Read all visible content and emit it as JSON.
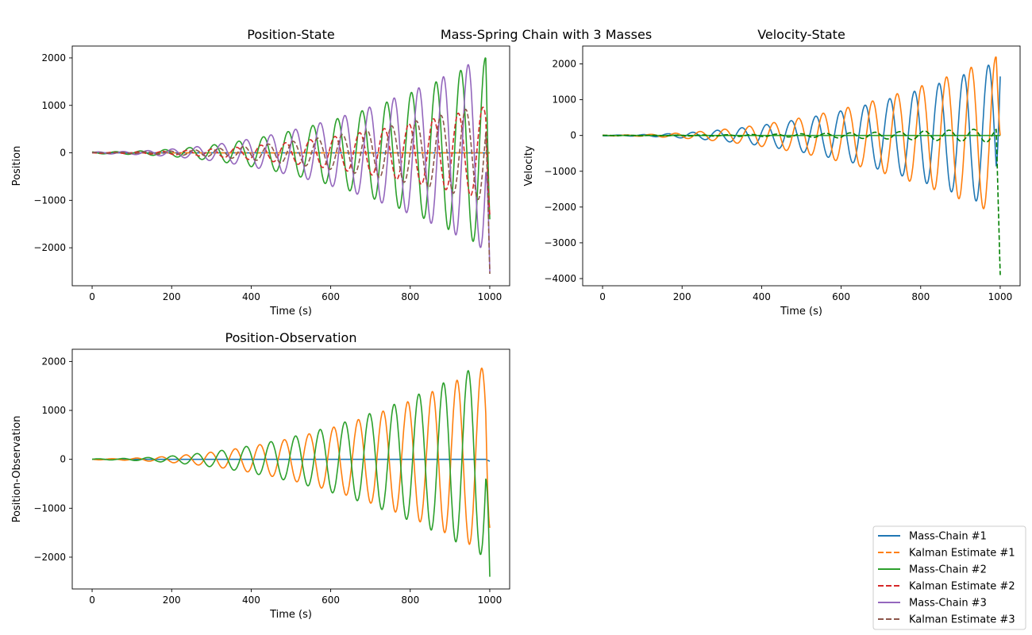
{
  "figure": {
    "suptitle": "Mass-Spring Chain with 3 Masses"
  },
  "legend": {
    "placement": "bottom-right",
    "entries": [
      {
        "label": "Mass-Chain #1",
        "color": "#1f77b4",
        "style": "solid"
      },
      {
        "label": "Kalman Estimate #1",
        "color": "#ff7f0e",
        "style": "dashed"
      },
      {
        "label": "Mass-Chain #2",
        "color": "#2ca02c",
        "style": "solid"
      },
      {
        "label": "Kalman Estimate #2",
        "color": "#d62728",
        "style": "dashed"
      },
      {
        "label": "Mass-Chain #3",
        "color": "#9467bd",
        "style": "solid"
      },
      {
        "label": "Kalman Estimate #3",
        "color": "#8c564b",
        "style": "dashed"
      }
    ]
  },
  "chart_data": [
    {
      "id": "position",
      "type": "line",
      "title": "Position-State",
      "xlabel": "Time (s)",
      "ylabel": "Position",
      "xlim": [
        -50,
        1050
      ],
      "ylim": [
        -2800,
        2250
      ],
      "xticks": [
        0,
        200,
        400,
        600,
        800,
        1000
      ],
      "yticks": [
        -2000,
        -1000,
        0,
        1000,
        2000
      ],
      "period": 62,
      "series": [
        {
          "name": "Mass-Chain #1",
          "color": "#1f77b4",
          "dash": false,
          "amp_start": 0,
          "amp_end": 0,
          "phase": 0,
          "end_value": 0
        },
        {
          "name": "Kalman Estimate #1",
          "color": "#ff7f0e",
          "dash": true,
          "amp_start": 0,
          "amp_end": 0,
          "phase": 0,
          "end_value": 0
        },
        {
          "name": "Mass-Chain #2",
          "color": "#2ca02c",
          "dash": false,
          "amp_start": 20,
          "amp_end": 2050,
          "phase": 0.3,
          "end_value": -1400
        },
        {
          "name": "Kalman Estimate #2",
          "color": "#d62728",
          "dash": true,
          "amp_start": 10,
          "amp_end": 1000,
          "phase": 0.4,
          "end_value": -1300
        },
        {
          "name": "Mass-Chain #3",
          "color": "#9467bd",
          "dash": false,
          "amp_start": 20,
          "amp_end": 2100,
          "phase": 0.0,
          "end_value": -2500
        },
        {
          "name": "Kalman Estimate #3",
          "color": "#8c564b",
          "dash": true,
          "amp_start": 10,
          "amp_end": 1050,
          "phase": 0.1,
          "end_value": -2550
        }
      ]
    },
    {
      "id": "velocity",
      "type": "line",
      "title": "Velocity-State",
      "xlabel": "Time (s)",
      "ylabel": "Velocity",
      "xlim": [
        -50,
        1050
      ],
      "ylim": [
        -4200,
        2500
      ],
      "xticks": [
        0,
        200,
        400,
        600,
        800,
        1000
      ],
      "yticks": [
        -4000,
        -3000,
        -2000,
        -1000,
        0,
        1000,
        2000
      ],
      "period": 62,
      "series": [
        {
          "name": "Mass-Chain #1",
          "color": "#1f77b4",
          "dash": false,
          "amp_start": 10,
          "amp_end": 2100,
          "phase": 0.6,
          "end_value": 1650
        },
        {
          "name": "Kalman Estimate #1",
          "color": "#ff7f0e",
          "dash": false,
          "amp_start": 10,
          "amp_end": 2250,
          "phase": 0.3,
          "end_value": 0
        },
        {
          "name": "Mass-Chain #2",
          "color": "#2ca02c",
          "dash": false,
          "amp_start": 0,
          "amp_end": 0,
          "phase": 0,
          "end_value": 0
        },
        {
          "name": "Kalman Estimate #2",
          "color": "#008000",
          "dash": true,
          "amp_start": 5,
          "amp_end": 200,
          "phase": 0.2,
          "end_value": -3900
        }
      ]
    },
    {
      "id": "observation",
      "type": "line",
      "title": "Position-Observation",
      "xlabel": "Time (s)",
      "ylabel": "Position-Observation",
      "xlim": [
        -50,
        1050
      ],
      "ylim": [
        -2650,
        2250
      ],
      "xticks": [
        0,
        200,
        400,
        600,
        800,
        1000
      ],
      "yticks": [
        -2000,
        -1000,
        0,
        1000,
        2000
      ],
      "period": 62,
      "series": [
        {
          "name": "Mass-Chain #1",
          "color": "#1f77b4",
          "dash": false,
          "amp_start": 0,
          "amp_end": 0,
          "phase": 0,
          "end_value": -40
        },
        {
          "name": "Kalman Estimate #1",
          "color": "#ff7f0e",
          "dash": false,
          "amp_start": 10,
          "amp_end": 1950,
          "phase": 0.45,
          "end_value": -1400
        },
        {
          "name": "Mass-Chain #2",
          "color": "#2ca02c",
          "dash": false,
          "amp_start": 10,
          "amp_end": 2050,
          "phase": 0.0,
          "end_value": -2400
        }
      ]
    }
  ]
}
